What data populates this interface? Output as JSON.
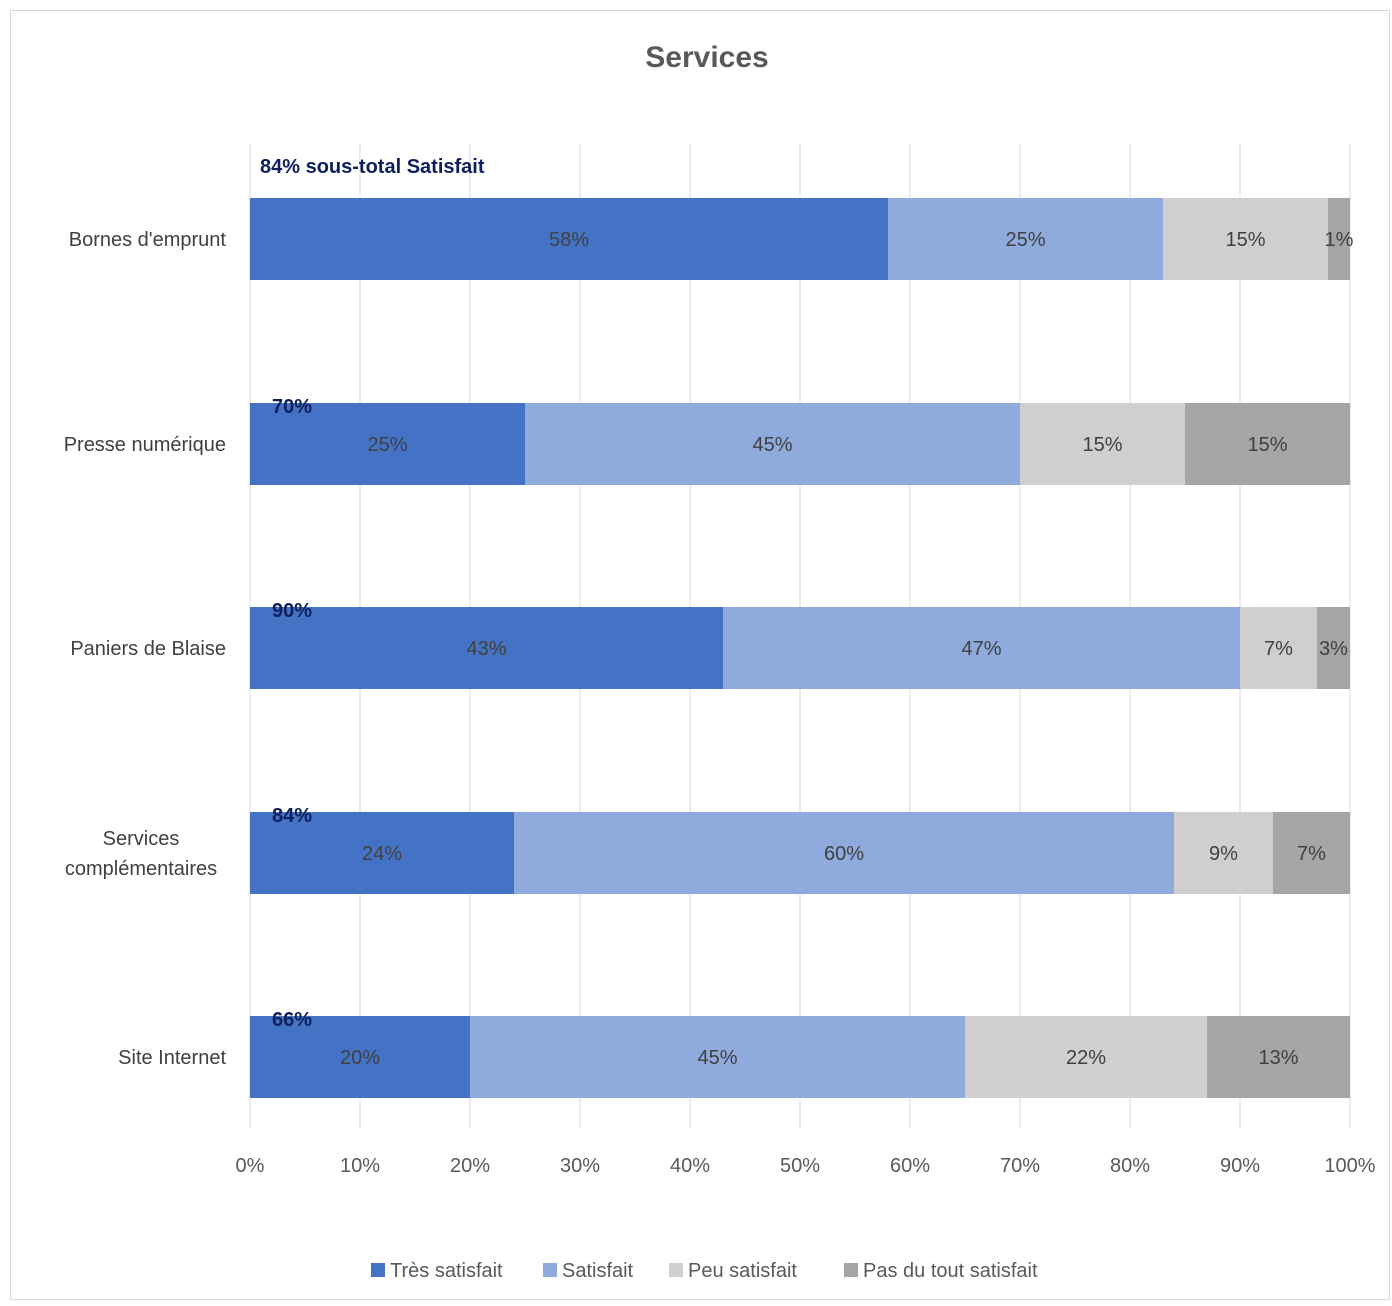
{
  "chart_data": {
    "type": "bar",
    "orientation": "horizontal",
    "stacked": "100%",
    "title": "Services",
    "categories": [
      "Bornes d'emprunt",
      "Presse numérique",
      "Paniers de Blaise",
      "Services complémentaires",
      "Site Internet"
    ],
    "series": [
      {
        "name": "Très satisfait",
        "color": "#4472c4",
        "values": [
          58,
          25,
          43,
          24,
          20
        ]
      },
      {
        "name": "Satisfait",
        "color": "#8faadc",
        "values": [
          25,
          45,
          47,
          60,
          45
        ]
      },
      {
        "name": "Peu satisfait",
        "color": "#d0cece",
        "values": [
          15,
          15,
          7,
          9,
          22
        ]
      },
      {
        "name": "Pas du tout satisfait",
        "color": "#a5a5a5",
        "values": [
          1,
          15,
          3,
          7,
          13
        ]
      }
    ],
    "data_labels": {
      "Bornes d'emprunt": [
        "58%",
        "25%",
        "15%",
        "1%"
      ],
      "Presse numérique": [
        "25%",
        "45%",
        "15%",
        "15%"
      ],
      "Paniers de Blaise": [
        "43%",
        "47%",
        "7%",
        "3%"
      ],
      "Services complémentaires": [
        "24%",
        "60%",
        "9%",
        "7%"
      ],
      "Site Internet": [
        "20%",
        "45%",
        "22%",
        "13%"
      ]
    },
    "subtotal_labels": [
      "84% sous-total Satisfait",
      "70%",
      "90%",
      "84%",
      "66%"
    ],
    "x_ticks": [
      "0%",
      "10%",
      "20%",
      "30%",
      "40%",
      "50%",
      "60%",
      "70%",
      "80%",
      "90%",
      "100%"
    ],
    "xlim": [
      0,
      100
    ],
    "grid": "vertical",
    "legend_position": "bottom"
  }
}
